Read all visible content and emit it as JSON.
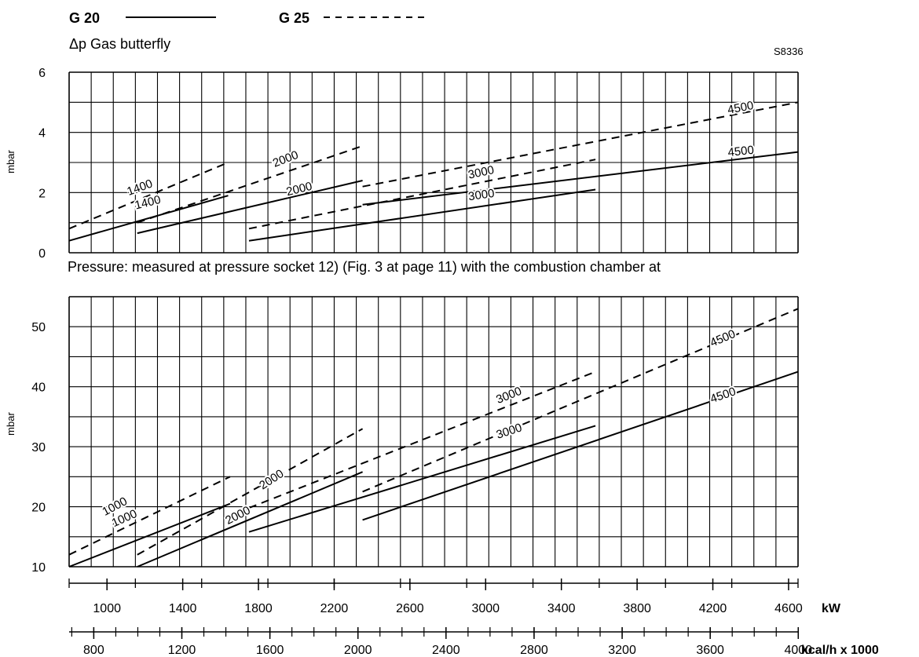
{
  "legend": {
    "g20_label": "G 20",
    "g25_label": "G 25",
    "g20_style": "solid",
    "g25_style": "dashed"
  },
  "subtitle": "Δp Gas butterfly",
  "figure_code": "S8336",
  "note": "Pressure: measured at pressure socket 12) (Fig. 3 at page 11) with the combustion chamber at",
  "x_axes": {
    "kw": {
      "unit": "kW",
      "ticks": [
        1000,
        1400,
        1800,
        2200,
        2600,
        3000,
        3400,
        3800,
        4200,
        4600
      ]
    },
    "kcal": {
      "unit": "kcal/h x 1000",
      "ticks": [
        800,
        1200,
        1600,
        2000,
        2400,
        2800,
        3200,
        3600,
        4000
      ]
    }
  },
  "colors": {
    "line": "#000000",
    "background": "#ffffff"
  },
  "chart_data": [
    {
      "type": "line",
      "title": "Δp Gas butterfly",
      "xlabel": "kW",
      "ylabel": "mbar",
      "xlim": [
        800,
        4650
      ],
      "ylim": [
        0,
        6
      ],
      "yticks": [
        0,
        2,
        4,
        6
      ],
      "grid": true,
      "series": [
        {
          "name": "1400",
          "gas": "G 20",
          "style": "solid",
          "x": [
            800,
            1640
          ],
          "y": [
            0.4,
            1.9
          ]
        },
        {
          "name": "1400",
          "gas": "G 25",
          "style": "dashed",
          "x": [
            800,
            1640
          ],
          "y": [
            0.8,
            3.0
          ]
        },
        {
          "name": "2000",
          "gas": "G 20",
          "style": "solid",
          "x": [
            1160,
            2350
          ],
          "y": [
            0.65,
            2.4
          ]
        },
        {
          "name": "2000",
          "gas": "G 25",
          "style": "dashed",
          "x": [
            1160,
            2350
          ],
          "y": [
            1.0,
            3.55
          ]
        },
        {
          "name": "3000",
          "gas": "G 20",
          "style": "solid",
          "x": [
            1750,
            3580
          ],
          "y": [
            0.4,
            2.1
          ]
        },
        {
          "name": "3000",
          "gas": "G 25",
          "style": "dashed",
          "x": [
            1750,
            3580
          ],
          "y": [
            0.8,
            3.1
          ]
        },
        {
          "name": "4500",
          "gas": "G 20",
          "style": "solid",
          "x": [
            2350,
            4650
          ],
          "y": [
            1.6,
            3.35
          ]
        },
        {
          "name": "4500",
          "gas": "G 25",
          "style": "dashed",
          "x": [
            2350,
            4650
          ],
          "y": [
            2.2,
            5.0
          ]
        }
      ],
      "annotations": [
        {
          "text": "1400",
          "x": 1180,
          "y": 2.05,
          "angle": -20
        },
        {
          "text": "1400",
          "x": 1220,
          "y": 1.55,
          "angle": -14
        },
        {
          "text": "2000",
          "x": 1950,
          "y": 3.0,
          "angle": -21
        },
        {
          "text": "2000",
          "x": 2020,
          "y": 2.0,
          "angle": -14
        },
        {
          "text": "3000",
          "x": 2980,
          "y": 2.55,
          "angle": -12
        },
        {
          "text": "3000",
          "x": 2980,
          "y": 1.8,
          "angle": -8
        },
        {
          "text": "4500",
          "x": 4350,
          "y": 4.7,
          "angle": -11
        },
        {
          "text": "4500",
          "x": 4350,
          "y": 3.25,
          "angle": -6
        }
      ]
    },
    {
      "type": "line",
      "title": "Pressure: measured at pressure socket 12) (Fig. 3 at page 11) with the combustion chamber at",
      "xlabel": "kW",
      "ylabel": "mbar",
      "xlim": [
        800,
        4650
      ],
      "ylim": [
        10,
        55
      ],
      "yticks": [
        10,
        20,
        30,
        40,
        50
      ],
      "grid": true,
      "series": [
        {
          "name": "1000",
          "gas": "G 20",
          "style": "solid",
          "x": [
            800,
            1650
          ],
          "y": [
            10.0,
            20.5
          ]
        },
        {
          "name": "1000",
          "gas": "G 25",
          "style": "dashed",
          "x": [
            800,
            1650
          ],
          "y": [
            12.0,
            25.0
          ]
        },
        {
          "name": "2000",
          "gas": "G 20",
          "style": "solid",
          "x": [
            1160,
            2350
          ],
          "y": [
            10.0,
            25.8
          ]
        },
        {
          "name": "2000",
          "gas": "G 25",
          "style": "dashed",
          "x": [
            1160,
            2350
          ],
          "y": [
            12.0,
            33.0
          ]
        },
        {
          "name": "3000",
          "gas": "G 20",
          "style": "solid",
          "x": [
            1750,
            3580
          ],
          "y": [
            15.8,
            33.5
          ]
        },
        {
          "name": "3000",
          "gas": "G 25",
          "style": "dashed",
          "x": [
            1750,
            3580
          ],
          "y": [
            19.8,
            42.5
          ]
        },
        {
          "name": "4500",
          "gas": "G 20",
          "style": "solid",
          "x": [
            2350,
            4650
          ],
          "y": [
            17.8,
            42.5
          ]
        },
        {
          "name": "4500",
          "gas": "G 25",
          "style": "dashed",
          "x": [
            2350,
            4650
          ],
          "y": [
            22.5,
            53.0
          ]
        }
      ],
      "annotations": [
        {
          "text": "1000",
          "x": 1050,
          "y": 19.5,
          "angle": -28
        },
        {
          "text": "1000",
          "x": 1100,
          "y": 17.5,
          "angle": -24
        },
        {
          "text": "2000",
          "x": 1880,
          "y": 24.0,
          "angle": -33
        },
        {
          "text": "2000",
          "x": 1700,
          "y": 18.0,
          "angle": -27
        },
        {
          "text": "3000",
          "x": 3130,
          "y": 38.0,
          "angle": -22
        },
        {
          "text": "3000",
          "x": 3130,
          "y": 32.0,
          "angle": -18
        },
        {
          "text": "4500",
          "x": 4260,
          "y": 47.5,
          "angle": -23
        },
        {
          "text": "4500",
          "x": 4260,
          "y": 38.0,
          "angle": -19
        }
      ]
    }
  ]
}
